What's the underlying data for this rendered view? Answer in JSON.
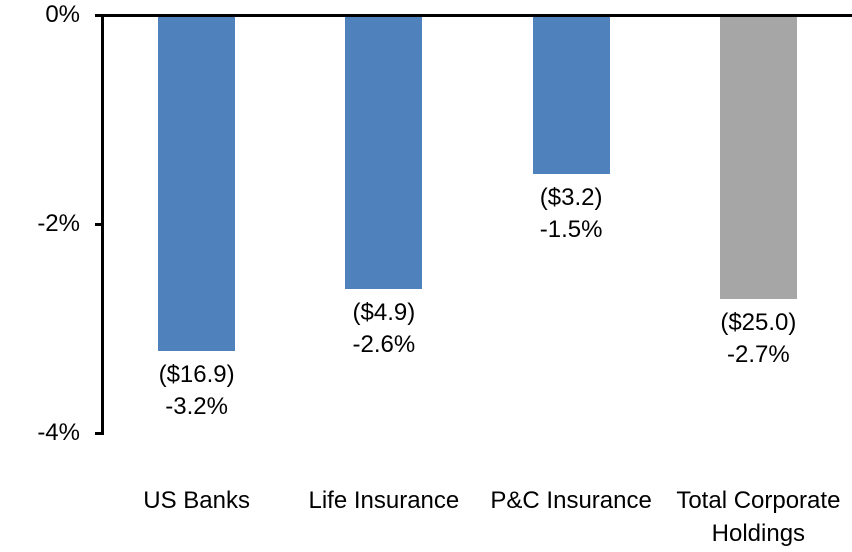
{
  "chart_data": {
    "type": "bar",
    "categories": [
      "US Banks",
      "Life Insurance",
      "P&C Insurance",
      "Total Corporate Holdings"
    ],
    "values": [
      -3.2,
      -2.6,
      -1.5,
      -2.7
    ],
    "bar_labels": [
      [
        "($16.9)",
        "-3.2%"
      ],
      [
        "($4.9)",
        "-2.6%"
      ],
      [
        "($3.2)",
        "-1.5%"
      ],
      [
        "($25.0)",
        "-2.7%"
      ]
    ],
    "bar_colors": [
      "#4F81BD",
      "#4F81BD",
      "#4F81BD",
      "#A6A6A6"
    ],
    "title": "",
    "xlabel": "",
    "ylabel": "",
    "ylim": [
      -4,
      0
    ],
    "yticks": [
      "0%",
      "-2%",
      "-4%"
    ],
    "ytick_values": [
      0,
      -2,
      -4
    ],
    "grid": false,
    "legend": false,
    "axis_color": "#000000",
    "background": "#FFFFFF"
  }
}
